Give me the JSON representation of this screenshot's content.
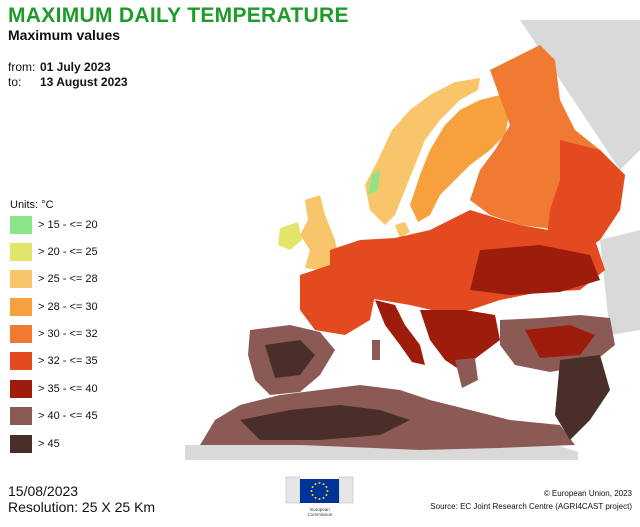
{
  "header": {
    "title": "MAXIMUM DAILY TEMPERATURE",
    "subtitle": "Maximum values",
    "from_label": "from:",
    "from_date": "01 July 2023",
    "to_label": "to:",
    "to_date": "13 August 2023"
  },
  "legend": {
    "units": "Units: °C",
    "classes": [
      {
        "label": "> 15 - <= 20",
        "color": "#8de58a"
      },
      {
        "label": "> 20 - <= 25",
        "color": "#e3e56b"
      },
      {
        "label": "> 25 - <= 28",
        "color": "#f9c56a"
      },
      {
        "label": "> 28 - <= 30",
        "color": "#f7a03e"
      },
      {
        "label": "> 30 - <= 32",
        "color": "#f07a32"
      },
      {
        "label": "> 32 - <= 35",
        "color": "#e34a1f"
      },
      {
        "label": "> 35 - <= 40",
        "color": "#9e1c0c"
      },
      {
        "label": "> 40 - <= 45",
        "color": "#8c5a55"
      },
      {
        "label": "> 45",
        "color": "#4a2e2a"
      }
    ]
  },
  "footer": {
    "date": "15/08/2023",
    "resolution": "Resolution: 25 X 25 Km",
    "copyright": "© European Union, 2023",
    "source": "Source: EC Joint Research Centre (AGRI4CAST project)",
    "logo_text_1": "European",
    "logo_text_2": "Commission"
  },
  "colors": {
    "title": "#1e9b2a",
    "sea": "#ffffff",
    "outside_land": "#d9d9d9",
    "eu_blue": "#003399",
    "eu_star": "#ffdd00"
  }
}
